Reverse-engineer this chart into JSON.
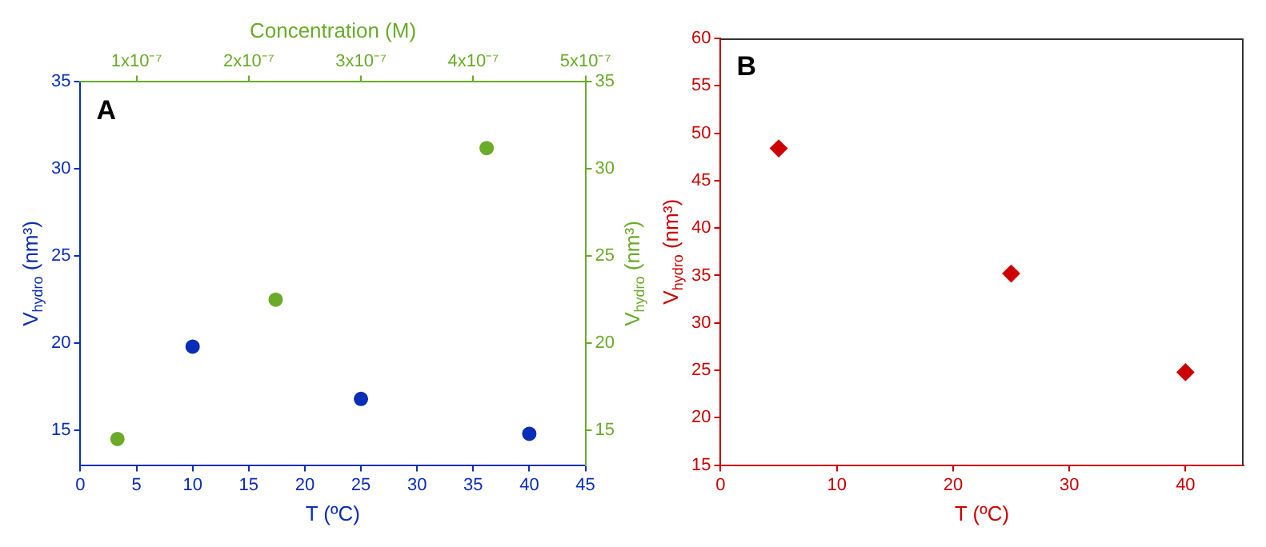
{
  "chart_data": [
    {
      "type": "scatter",
      "title": "A",
      "xlabel": "T (ºC)",
      "ylabel": "V$_{hydro}$ (nm³)",
      "x2label": "Concentration (M)",
      "y2label": "V$_{hydro}$ (nm³)",
      "xlim": [
        0,
        45
      ],
      "xticks": [
        0,
        5,
        10,
        15,
        20,
        25,
        30,
        35,
        40,
        45
      ],
      "ylim": [
        13,
        35
      ],
      "yticks": [
        15,
        20,
        25,
        30,
        35
      ],
      "x2lim": [
        5e-08,
        5e-07
      ],
      "x2ticks": [
        {
          "value": 1e-07,
          "label": "1x10⁻⁷"
        },
        {
          "value": 2e-07,
          "label": "2x10⁻⁷"
        },
        {
          "value": 3e-07,
          "label": "3x10⁻⁷"
        },
        {
          "value": 4e-07,
          "label": "4x10⁻⁷"
        },
        {
          "value": 5e-07,
          "label": "5x10⁻⁷"
        }
      ],
      "y2lim": [
        13,
        35
      ],
      "y2ticks": [
        15,
        20,
        25,
        30,
        35
      ],
      "marker": "circle",
      "series": [
        {
          "color": "#0a2db8",
          "x": [
            10,
            25,
            40
          ],
          "values": [
            19.8,
            16.8,
            14.8
          ]
        },
        {
          "color": "#6aab2a",
          "axis": "x2",
          "x": [
            8.3e-08,
            2.24e-07,
            4.12e-07
          ],
          "values": [
            14.5,
            22.5,
            31.2
          ]
        }
      ]
    },
    {
      "type": "scatter",
      "title": "B",
      "xlabel": "T (ºC)",
      "ylabel": "V$_{hydro}$ (nm³)",
      "xlim": [
        0,
        45
      ],
      "xticks": [
        0,
        10,
        20,
        30,
        40
      ],
      "ylim": [
        15,
        60
      ],
      "yticks": [
        15,
        20,
        25,
        30,
        35,
        40,
        45,
        50,
        55,
        60
      ],
      "marker": "diamond",
      "series": [
        {
          "color": "#cc0000",
          "x": [
            5,
            25,
            40
          ],
          "values": [
            48.4,
            35.2,
            24.8
          ]
        }
      ]
    }
  ]
}
